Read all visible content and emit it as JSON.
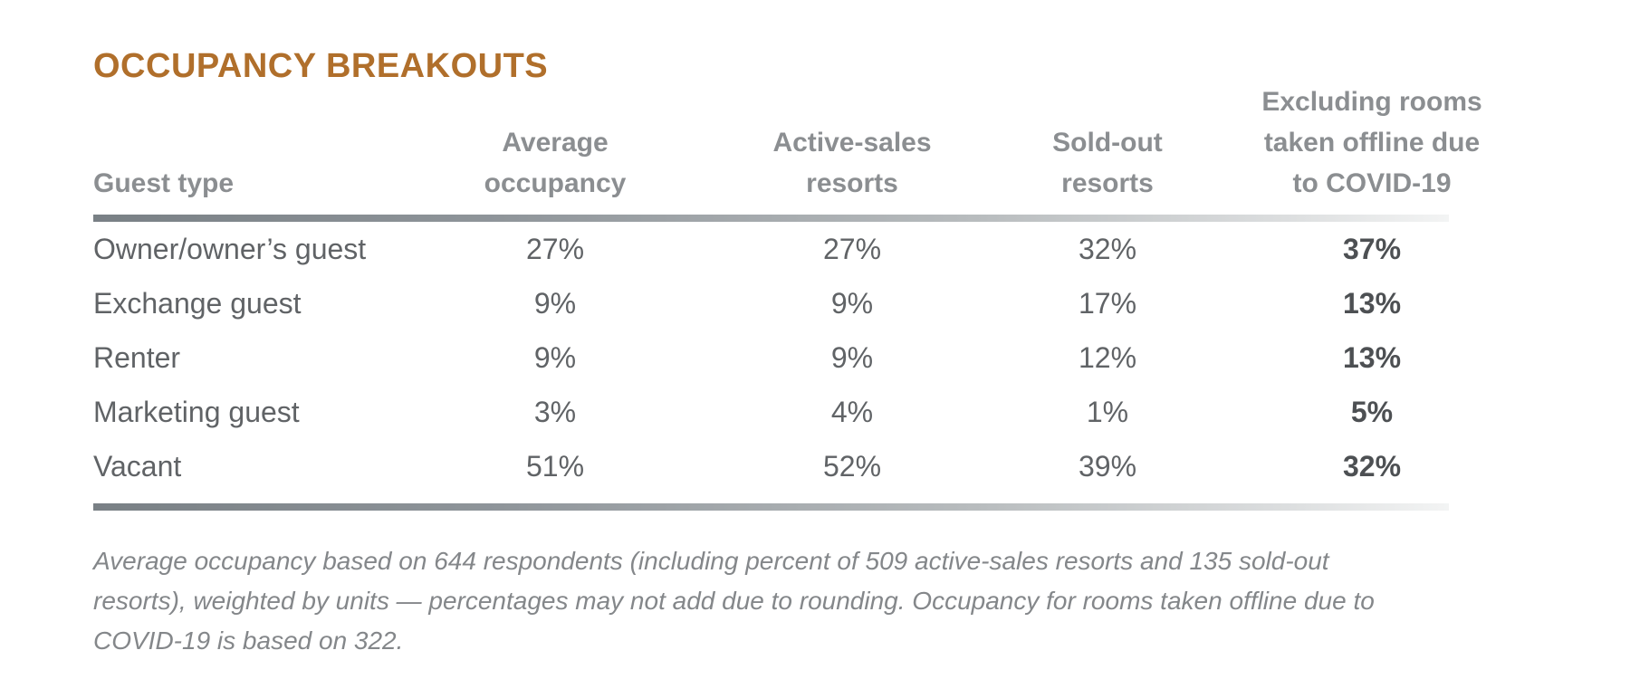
{
  "title": "OCCUPANCY BREAKOUTS",
  "colors": {
    "title_accent": "#B06F2B",
    "header_text": "#8B8E91",
    "body_text": "#606366",
    "bold_column_text": "#4D5053",
    "footnote_text": "#84878A",
    "rule_gradient_start": "#798085",
    "rule_gradient_end": "#F3F4F4"
  },
  "table": {
    "headers": {
      "guest_type": "Guest type",
      "avg": "Average\noccupancy",
      "active": "Active-sales\nresorts",
      "sold": "Sold-out\nresorts",
      "excl": "Excluding rooms\ntaken offline due\nto COVID-19"
    },
    "rows": [
      {
        "guest_type": "Owner/owner’s guest",
        "avg": "27%",
        "active": "27%",
        "sold": "32%",
        "excl": "37%"
      },
      {
        "guest_type": "Exchange guest",
        "avg": "9%",
        "active": "9%",
        "sold": "17%",
        "excl": "13%"
      },
      {
        "guest_type": "Renter",
        "avg": "9%",
        "active": "9%",
        "sold": "12%",
        "excl": "13%"
      },
      {
        "guest_type": "Marketing guest",
        "avg": "3%",
        "active": "4%",
        "sold": "1%",
        "excl": "5%"
      },
      {
        "guest_type": "Vacant",
        "avg": "51%",
        "active": "52%",
        "sold": "39%",
        "excl": "32%"
      }
    ]
  },
  "footnote": "Average occupancy based on 644 respondents (including percent of 509 active-sales resorts and 135 sold-out resorts), weighted by units — percentages may not add due to rounding. Occupancy for rooms taken offline due to COVID-19 is based on 322.",
  "chart_data": {
    "type": "table",
    "title": "OCCUPANCY BREAKOUTS",
    "row_header": "Guest type",
    "categories": [
      "Owner/owner’s guest",
      "Exchange guest",
      "Renter",
      "Marketing guest",
      "Vacant"
    ],
    "series": [
      {
        "name": "Average occupancy",
        "values": [
          "27%",
          "9%",
          "9%",
          "3%",
          "51%"
        ]
      },
      {
        "name": "Active-sales resorts",
        "values": [
          "27%",
          "9%",
          "9%",
          "4%",
          "52%"
        ]
      },
      {
        "name": "Sold-out resorts",
        "values": [
          "32%",
          "17%",
          "12%",
          "1%",
          "39%"
        ]
      },
      {
        "name": "Excluding rooms taken offline due to COVID-19",
        "values": [
          "37%",
          "13%",
          "13%",
          "5%",
          "32%"
        ]
      }
    ],
    "footnote": "Average occupancy based on 644 respondents (including percent of 509 active-sales resorts and 135 sold-out resorts), weighted by units — percentages may not add due to rounding. Occupancy for rooms taken offline due to COVID-19 is based on 322."
  }
}
